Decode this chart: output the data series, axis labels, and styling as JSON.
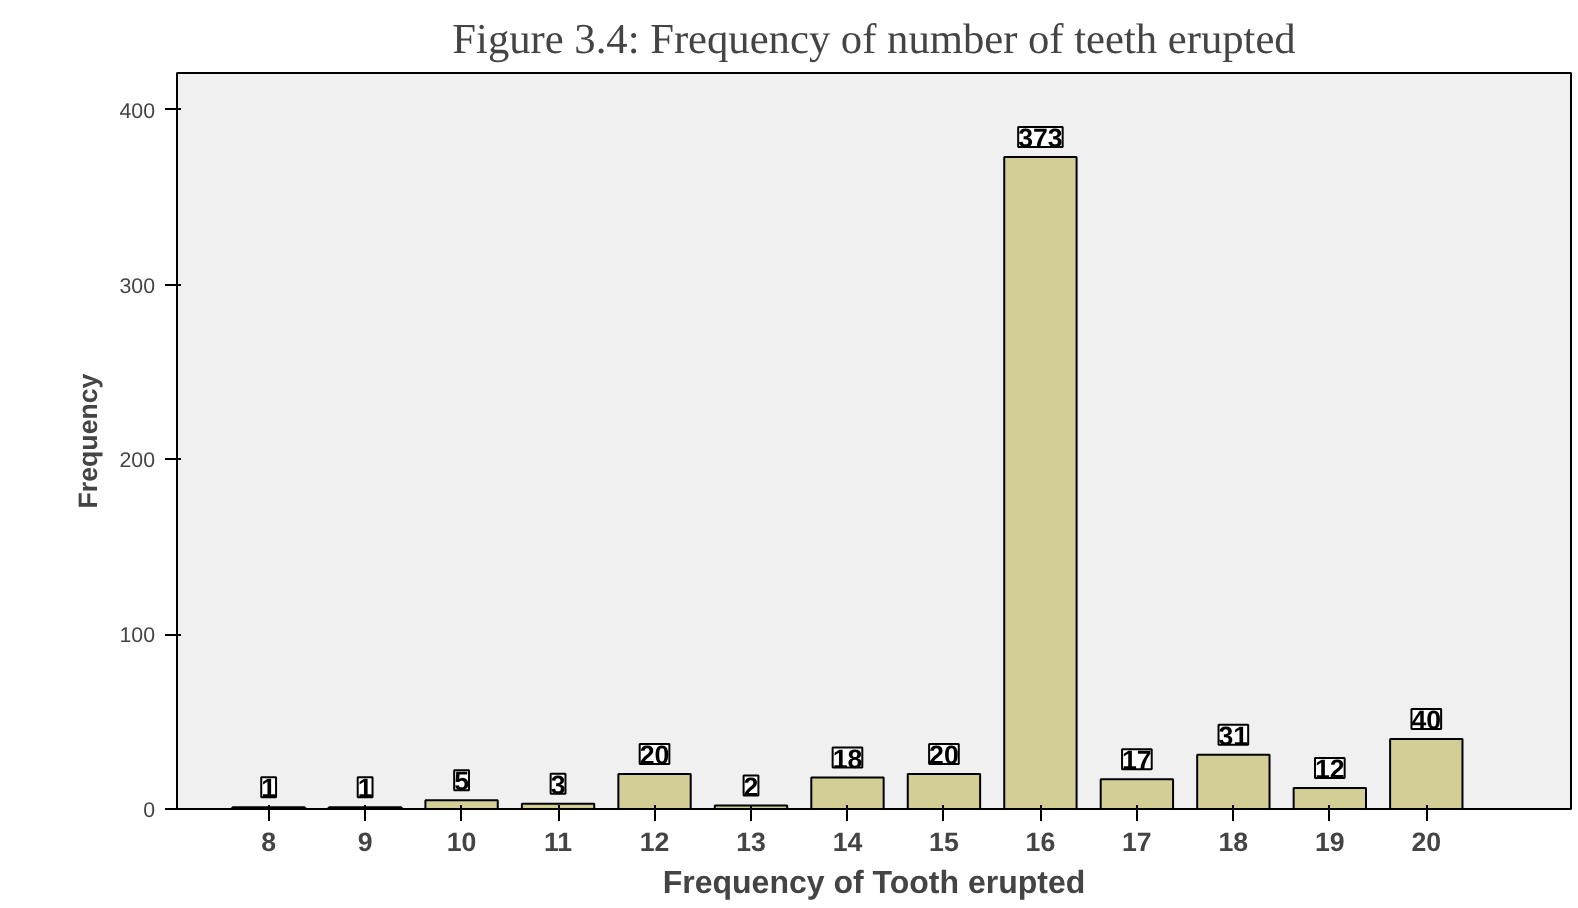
{
  "chart_data": {
    "type": "bar",
    "title": "Figure 3.4: Frequency of number of teeth erupted",
    "xlabel": "Frequency of Tooth erupted",
    "ylabel": "Frequency",
    "categories": [
      "8",
      "9",
      "10",
      "11",
      "12",
      "13",
      "14",
      "15",
      "16",
      "17",
      "18",
      "19",
      "20"
    ],
    "values": [
      1,
      1,
      5,
      3,
      20,
      2,
      18,
      20,
      373,
      17,
      31,
      12,
      40
    ],
    "color": "#d3ce96",
    "ylim": [
      0,
      421
    ],
    "yticks": [
      0,
      100,
      200,
      300,
      400
    ],
    "grid": false,
    "data_labels": true
  }
}
